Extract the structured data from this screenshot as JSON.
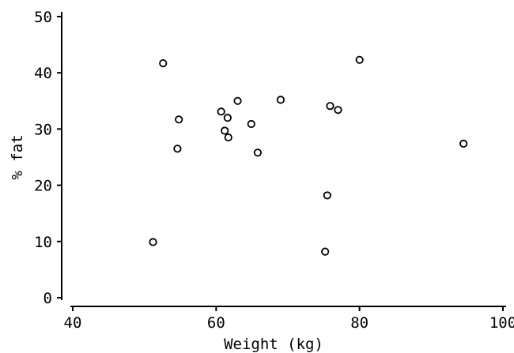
{
  "chart_data": {
    "type": "scatter",
    "title": "",
    "xlabel": "Weight (kg)",
    "ylabel": "% fat",
    "xlim": [
      40,
      100
    ],
    "ylim": [
      0,
      50
    ],
    "xticks": [
      40,
      60,
      80,
      100
    ],
    "yticks": [
      0,
      10,
      20,
      30,
      40,
      50
    ],
    "grid": false,
    "legend": "none",
    "marker": "open-circle",
    "color": "#000000",
    "points": [
      {
        "x": 51.2,
        "y": 9.9
      },
      {
        "x": 52.6,
        "y": 41.7
      },
      {
        "x": 54.6,
        "y": 26.5
      },
      {
        "x": 54.8,
        "y": 31.7
      },
      {
        "x": 60.7,
        "y": 33.1
      },
      {
        "x": 61.2,
        "y": 29.7
      },
      {
        "x": 61.6,
        "y": 32.0
      },
      {
        "x": 61.7,
        "y": 28.5
      },
      {
        "x": 63.0,
        "y": 35.0
      },
      {
        "x": 64.9,
        "y": 30.9
      },
      {
        "x": 65.8,
        "y": 25.8
      },
      {
        "x": 69.0,
        "y": 35.2
      },
      {
        "x": 75.2,
        "y": 8.2
      },
      {
        "x": 75.5,
        "y": 18.2
      },
      {
        "x": 75.9,
        "y": 34.1
      },
      {
        "x": 77.0,
        "y": 33.4
      },
      {
        "x": 80.0,
        "y": 42.3
      },
      {
        "x": 94.5,
        "y": 27.4
      }
    ]
  }
}
